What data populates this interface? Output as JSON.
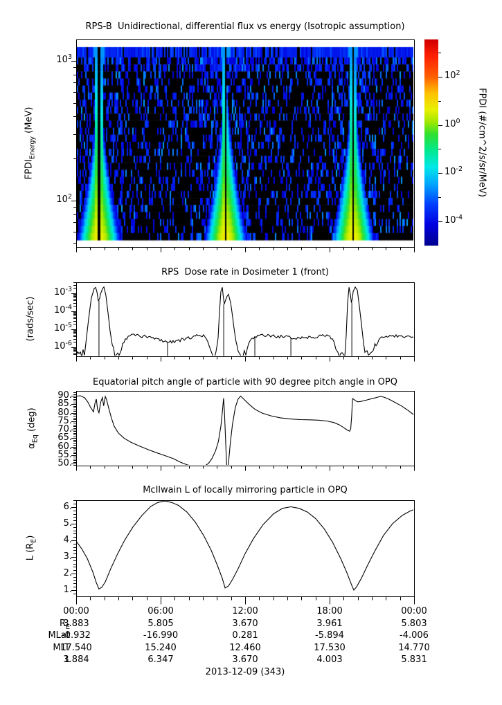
{
  "xaxis": {
    "time_labels": [
      "00:00",
      "06:00",
      "12:00",
      "18:00",
      "00:00"
    ],
    "time_hours": [
      0,
      6,
      12,
      18,
      24
    ],
    "date_label": "2013-12-09 (343)"
  },
  "ephemeris_table": {
    "rows": [
      {
        "label_parts": [
          {
            "t": "R"
          },
          {
            "sub": "E"
          }
        ],
        "name": "RE",
        "values": [
          "3.883",
          "5.805",
          "3.670",
          "3.961",
          "5.803"
        ]
      },
      {
        "label_parts": [
          {
            "t": "MLat"
          }
        ],
        "name": "MLat",
        "values": [
          "-0.932",
          "-16.990",
          "0.281",
          "-5.894",
          "-4.006"
        ]
      },
      {
        "label_parts": [
          {
            "t": "MLT"
          }
        ],
        "name": "MLT",
        "values": [
          "17.540",
          "15.240",
          "12.460",
          "17.530",
          "14.770"
        ]
      },
      {
        "label_parts": [
          {
            "t": "L"
          }
        ],
        "name": "L",
        "values": [
          "3.884",
          "6.347",
          "3.670",
          "4.003",
          "5.831"
        ]
      }
    ]
  },
  "chart_data": [
    {
      "type": "heatmap",
      "title": "RPS-B  Unidirectional, differential flux vs energy (Isotropic assumption)",
      "ylabel_parts": [
        {
          "t": "FPDI"
        },
        {
          "sub": "Energy"
        },
        {
          "t": " (MeV)"
        }
      ],
      "yscale": "log",
      "ylim_mev": [
        46.6,
        1423
      ],
      "ytick_exponents": [
        3,
        2
      ],
      "x_range_hours": [
        0,
        24
      ],
      "colorbar": {
        "label": "FPDI (#/cm^2/s/sr/MeV)",
        "scale": "log",
        "range_log10": [
          -5.0,
          3.55
        ],
        "labeled_tick_exponents": [
          2,
          0,
          -2,
          -4
        ],
        "minor_tick_exponents": [
          3,
          1,
          -1,
          -3
        ]
      },
      "content": {
        "background": "black with sparse blue/cyan low-flux speckle (log10 flux -4.4 to -2.4)",
        "top_band_flux_log10": -4.0,
        "perigee_flame_times_hours": [
          1.62,
          10.6,
          19.65
        ],
        "flame_core_flux_log10": 0.8,
        "flame_base_energy_mev": 47,
        "data_gap_at_flame_centers": true
      }
    },
    {
      "type": "line",
      "title": "RPS  Dose rate in Dosimeter 1 (front)",
      "ylabel_parts": [
        {
          "t": "(rads/sec)"
        }
      ],
      "yscale": "log",
      "ytick_exponents": [
        -3,
        -4,
        -5,
        -6
      ],
      "ylim": [
        3.2e-07,
        0.0042
      ],
      "points": [
        [
          0,
          4e-07
        ],
        [
          0.3,
          4.5e-07
        ],
        [
          0.59,
          6e-07
        ],
        [
          0.69,
          2e-06
        ],
        [
          0.89,
          4e-05
        ],
        [
          1.08,
          0.0006
        ],
        [
          1.28,
          0.0018
        ],
        [
          1.38,
          0.0022
        ],
        [
          1.48,
          0.0012
        ],
        [
          1.57,
          0.0004
        ],
        [
          1.67,
          0.0005
        ],
        [
          1.72,
          0.0009
        ],
        [
          1.87,
          0.0018
        ],
        [
          1.97,
          0.0022
        ],
        [
          2.11,
          0.0008
        ],
        [
          2.26,
          8e-05
        ],
        [
          2.41,
          8e-06
        ],
        [
          2.56,
          1.5e-06
        ],
        [
          2.66,
          6e-07
        ],
        [
          2.75,
          4e-07
        ],
        [
          3.05,
          4e-07
        ],
        [
          3.3,
          1.5e-06
        ],
        [
          3.59,
          3.2e-06
        ],
        [
          3.93,
          5e-06
        ],
        [
          4.28,
          4.8e-06
        ],
        [
          4.67,
          4.2e-06
        ],
        [
          5.16,
          3.6e-06
        ],
        [
          5.66,
          3e-06
        ],
        [
          6.15,
          2.4e-06
        ],
        [
          6.44,
          2.1e-06
        ],
        [
          6.59,
          2e-06
        ],
        [
          6.98,
          2.2e-06
        ],
        [
          7.48,
          2.6e-06
        ],
        [
          7.97,
          3.2e-06
        ],
        [
          8.46,
          4.2e-06
        ],
        [
          8.85,
          5e-06
        ],
        [
          9.15,
          4e-06
        ],
        [
          9.34,
          1.8e-06
        ],
        [
          9.49,
          7e-07
        ],
        [
          9.59,
          4e-07
        ],
        [
          9.93,
          4e-07
        ],
        [
          10.08,
          3e-06
        ],
        [
          10.18,
          0.0001
        ],
        [
          10.28,
          0.0012
        ],
        [
          10.38,
          0.0022
        ],
        [
          10.44,
          0.0008
        ],
        [
          10.52,
          0.00025
        ],
        [
          10.6,
          0.0004
        ],
        [
          10.72,
          0.0007
        ],
        [
          10.82,
          0.0009
        ],
        [
          10.97,
          0.0003
        ],
        [
          11.11,
          5e-05
        ],
        [
          11.26,
          6e-06
        ],
        [
          11.41,
          1e-06
        ],
        [
          11.51,
          5e-07
        ],
        [
          11.61,
          4e-07
        ],
        [
          12.05,
          4e-07
        ],
        [
          12.25,
          1.5e-06
        ],
        [
          12.49,
          3e-06
        ],
        [
          12.79,
          3.8e-06
        ],
        [
          13.13,
          4.3e-06
        ],
        [
          13.52,
          4.5e-06
        ],
        [
          14.02,
          4.2e-06
        ],
        [
          14.66,
          3.8e-06
        ],
        [
          15.25,
          3.4e-06
        ],
        [
          15.84,
          3.4e-06
        ],
        [
          16.43,
          3.6e-06
        ],
        [
          17.02,
          4e-06
        ],
        [
          17.51,
          4.4e-06
        ],
        [
          17.9,
          4.2e-06
        ],
        [
          18.2,
          3e-06
        ],
        [
          18.44,
          1.2e-06
        ],
        [
          18.59,
          5e-07
        ],
        [
          18.79,
          4e-07
        ],
        [
          19.08,
          4e-07
        ],
        [
          19.18,
          5e-06
        ],
        [
          19.28,
          0.0003
        ],
        [
          19.38,
          0.0022
        ],
        [
          19.48,
          0.0008
        ],
        [
          19.55,
          0.0003
        ],
        [
          19.62,
          0.0005
        ],
        [
          19.67,
          0.0012
        ],
        [
          19.82,
          0.0022
        ],
        [
          19.97,
          0.0015
        ],
        [
          20.11,
          0.0002
        ],
        [
          20.26,
          2e-05
        ],
        [
          20.41,
          2e-06
        ],
        [
          20.51,
          6e-07
        ],
        [
          20.66,
          4e-07
        ],
        [
          21.05,
          4e-07
        ],
        [
          21.3,
          1.5e-06
        ],
        [
          21.59,
          3e-06
        ],
        [
          21.93,
          4e-06
        ],
        [
          22.28,
          4.6e-06
        ],
        [
          22.72,
          4.4e-06
        ],
        [
          23.21,
          4.1e-06
        ],
        [
          23.7,
          3.9e-06
        ],
        [
          24,
          3.6e-06
        ]
      ],
      "dropouts": [
        [
          1.62,
          0.0004
        ],
        [
          6.49,
          2e-06
        ],
        [
          10.48,
          0.00025
        ],
        [
          12.69,
          3.8e-06
        ],
        [
          15.25,
          3.4e-06
        ],
        [
          19.58,
          0.0003
        ]
      ]
    },
    {
      "type": "line",
      "title": "Equatorial pitch angle of particle with 90 degree pitch angle in OPQ",
      "ylabel_parts": [
        {
          "t": "α"
        },
        {
          "sub": "Eq"
        },
        {
          "t": " (deg)"
        }
      ],
      "yscale": "linear",
      "ytick_labels": [
        "90.",
        "85.",
        "80.",
        "75.",
        "70.",
        "65.",
        "60.",
        "55.",
        "50."
      ],
      "ytick_values": [
        90,
        85,
        80,
        75,
        70,
        65,
        60,
        55,
        50
      ],
      "ylim": [
        48.78,
        92.86
      ],
      "points": [
        [
          0.05,
          89.8
        ],
        [
          0.3,
          90
        ],
        [
          0.6,
          88.8
        ],
        [
          0.85,
          86
        ],
        [
          1.0,
          83.5
        ],
        [
          1.23,
          80.5
        ],
        [
          1.35,
          86
        ],
        [
          1.43,
          88
        ],
        [
          1.52,
          82
        ],
        [
          1.62,
          80
        ],
        [
          1.75,
          86.5
        ],
        [
          1.87,
          89
        ],
        [
          1.95,
          84
        ],
        [
          2.07,
          89.5
        ],
        [
          2.15,
          88
        ],
        [
          2.3,
          83
        ],
        [
          2.5,
          77
        ],
        [
          2.7,
          72
        ],
        [
          3.0,
          68
        ],
        [
          3.4,
          65
        ],
        [
          3.9,
          62.5
        ],
        [
          4.5,
          60.3
        ],
        [
          5.1,
          58.3
        ],
        [
          5.7,
          56.4
        ],
        [
          6.3,
          54.7
        ],
        [
          6.9,
          52.9
        ],
        [
          7.4,
          50.8
        ],
        [
          7.9,
          49.2
        ],
        [
          8.5,
          48.3
        ],
        [
          9.1,
          48.4
        ],
        [
          9.4,
          50.1
        ],
        [
          9.65,
          53
        ],
        [
          9.9,
          57.5
        ],
        [
          10.1,
          63
        ],
        [
          10.28,
          72
        ],
        [
          10.4,
          82
        ],
        [
          10.47,
          88.5
        ],
        [
          10.53,
          81
        ],
        [
          10.6,
          67
        ],
        [
          10.67,
          52
        ],
        [
          10.72,
          46.5
        ],
        [
          10.78,
          47
        ],
        [
          10.85,
          53
        ],
        [
          10.95,
          62
        ],
        [
          11.1,
          73
        ],
        [
          11.3,
          83
        ],
        [
          11.5,
          88
        ],
        [
          11.68,
          89.8
        ],
        [
          11.95,
          87.6
        ],
        [
          12.3,
          84.8
        ],
        [
          12.7,
          82
        ],
        [
          13.2,
          79.8
        ],
        [
          13.8,
          78.2
        ],
        [
          14.5,
          77
        ],
        [
          15.2,
          76.3
        ],
        [
          15.9,
          75.9
        ],
        [
          16.6,
          75.8
        ],
        [
          17.2,
          75.6
        ],
        [
          17.8,
          75.1
        ],
        [
          18.3,
          74.2
        ],
        [
          18.7,
          72.8
        ],
        [
          19.0,
          71.2
        ],
        [
          19.25,
          69.8
        ],
        [
          19.42,
          69.1
        ],
        [
          19.5,
          70.5
        ],
        [
          19.57,
          78
        ],
        [
          19.63,
          88.3
        ],
        [
          19.7,
          88
        ],
        [
          19.85,
          87
        ],
        [
          20.0,
          86.4
        ],
        [
          20.2,
          86.6
        ],
        [
          20.6,
          87.4
        ],
        [
          21.0,
          88.3
        ],
        [
          21.35,
          89
        ],
        [
          21.6,
          89.6
        ],
        [
          21.85,
          89.2
        ],
        [
          22.2,
          88
        ],
        [
          22.6,
          86.3
        ],
        [
          23.1,
          84
        ],
        [
          23.6,
          81.2
        ],
        [
          24,
          78.6
        ]
      ]
    },
    {
      "type": "line",
      "title": "McIlwain L of locally mirroring particle in OPQ",
      "ylabel_parts": [
        {
          "t": "L (R"
        },
        {
          "sub": "E"
        },
        {
          "t": ")"
        }
      ],
      "yscale": "linear",
      "ytick_labels": [
        "6.",
        "5.",
        "4.",
        "3.",
        "2.",
        "1."
      ],
      "ytick_values": [
        6,
        5,
        4,
        3,
        2,
        1
      ],
      "ylim": [
        0.625,
        6.417
      ],
      "points": [
        [
          0,
          3.95
        ],
        [
          0.39,
          3.5
        ],
        [
          0.79,
          2.9
        ],
        [
          1.18,
          2.1
        ],
        [
          1.43,
          1.45
        ],
        [
          1.62,
          1.07
        ],
        [
          1.82,
          1.17
        ],
        [
          2.07,
          1.5
        ],
        [
          2.46,
          2.3
        ],
        [
          2.95,
          3.2
        ],
        [
          3.44,
          4.0
        ],
        [
          4.03,
          4.8
        ],
        [
          4.67,
          5.5
        ],
        [
          5.31,
          6.05
        ],
        [
          5.8,
          6.28
        ],
        [
          6.3,
          6.37
        ],
        [
          6.79,
          6.28
        ],
        [
          7.28,
          6.1
        ],
        [
          7.87,
          5.7
        ],
        [
          8.46,
          5.1
        ],
        [
          9.05,
          4.3
        ],
        [
          9.59,
          3.4
        ],
        [
          10.03,
          2.5
        ],
        [
          10.38,
          1.7
        ],
        [
          10.58,
          1.13
        ],
        [
          10.82,
          1.25
        ],
        [
          11.11,
          1.65
        ],
        [
          11.51,
          2.3
        ],
        [
          12.0,
          3.2
        ],
        [
          12.59,
          4.1
        ],
        [
          13.28,
          4.95
        ],
        [
          14.02,
          5.6
        ],
        [
          14.66,
          5.93
        ],
        [
          15.25,
          6.02
        ],
        [
          15.84,
          5.93
        ],
        [
          16.43,
          5.7
        ],
        [
          17.02,
          5.3
        ],
        [
          17.61,
          4.7
        ],
        [
          18.2,
          3.9
        ],
        [
          18.79,
          2.9
        ],
        [
          19.23,
          2.05
        ],
        [
          19.57,
          1.3
        ],
        [
          19.72,
          1.0
        ],
        [
          19.92,
          1.2
        ],
        [
          20.26,
          1.72
        ],
        [
          20.7,
          2.5
        ],
        [
          21.24,
          3.4
        ],
        [
          21.83,
          4.3
        ],
        [
          22.47,
          5.0
        ],
        [
          23.16,
          5.5
        ],
        [
          23.75,
          5.78
        ],
        [
          24,
          5.85
        ]
      ]
    }
  ],
  "colors": {
    "foreground": "#000000",
    "background": "#ffffff",
    "rainbow_low": "#00008f",
    "rainbow_high": "#d00000"
  }
}
